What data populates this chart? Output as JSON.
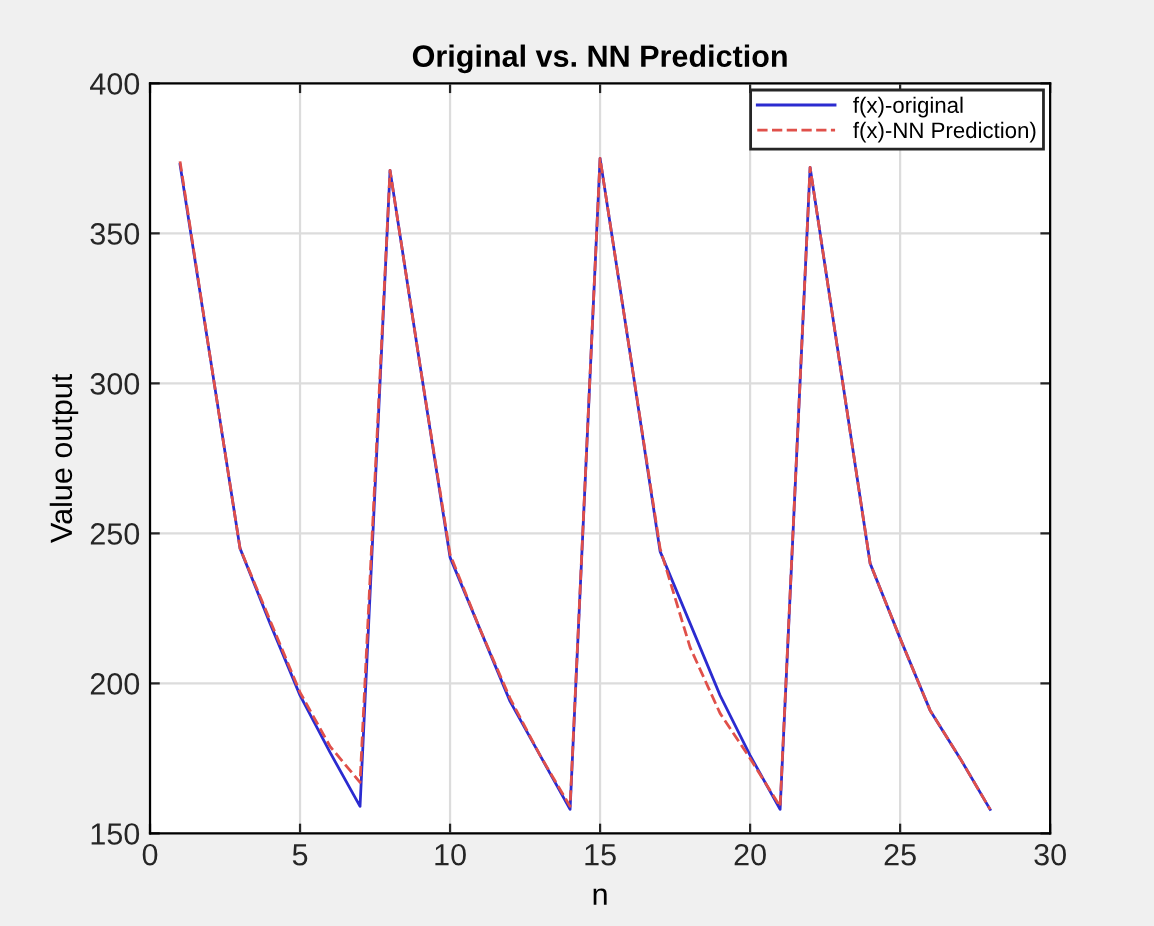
{
  "chart_data": {
    "type": "line",
    "title": "Original vs. NN Prediction",
    "xlabel": "n",
    "ylabel": "Value output",
    "x": [
      1,
      2,
      3,
      4,
      5,
      6,
      7,
      8,
      9,
      10,
      11,
      12,
      13,
      14,
      15,
      16,
      17,
      18,
      19,
      20,
      21,
      22,
      23,
      24,
      25,
      26,
      27,
      28
    ],
    "series": [
      {
        "name": "f(x)-original",
        "color": "#2b2bd0",
        "line_style": "solid",
        "values": [
          373,
          309,
          245,
          220,
          196,
          177,
          159,
          371,
          306,
          242,
          218,
          194,
          176,
          158,
          375,
          310,
          244,
          220,
          196,
          176,
          158,
          372,
          306,
          240,
          215,
          191,
          175,
          158
        ]
      },
      {
        "name": "f(x)-NN Prediction)",
        "color": "#e0504a",
        "line_style": "dashed",
        "values": [
          374,
          309,
          245,
          221,
          197,
          179,
          167,
          371,
          306,
          243,
          218,
          195,
          176,
          159,
          375,
          310,
          245,
          212,
          190,
          175,
          159,
          372,
          306,
          240,
          215,
          191,
          175,
          158
        ]
      }
    ],
    "xlim": [
      0,
      30
    ],
    "xticks": [
      0,
      5,
      10,
      15,
      20,
      25,
      30
    ],
    "ylim": [
      150,
      400
    ],
    "yticks": [
      150,
      200,
      250,
      300,
      350,
      400
    ],
    "grid": true,
    "legend": "top right",
    "marker": "none"
  }
}
